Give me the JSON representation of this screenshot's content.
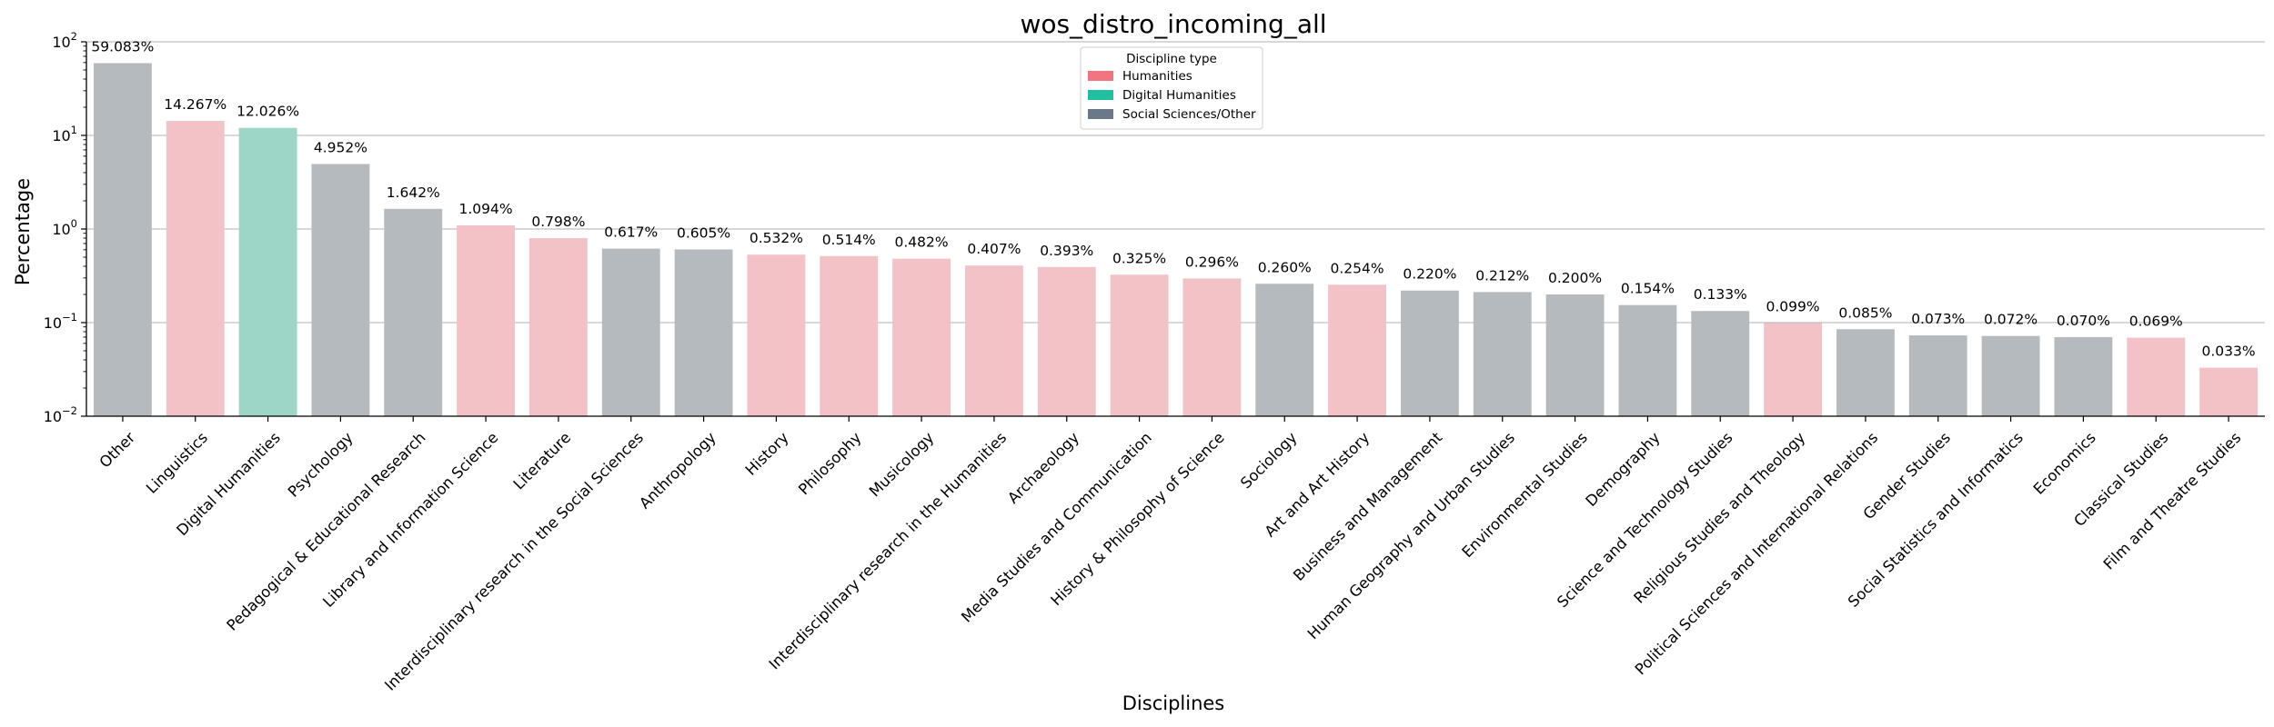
{
  "chart_data": {
    "type": "bar",
    "title": "wos_distro_incoming_all",
    "xlabel": "Disciplines",
    "ylabel": "Percentage",
    "y_scale": "log",
    "ylim": [
      0.01,
      100
    ],
    "y_ticks": [
      0.01,
      0.1,
      1,
      10,
      100
    ],
    "y_tick_labels": [
      {
        "base": "10",
        "exp": "−2"
      },
      {
        "base": "10",
        "exp": "−1"
      },
      {
        "base": "10",
        "exp": "0"
      },
      {
        "base": "10",
        "exp": "1"
      },
      {
        "base": "10",
        "exp": "2"
      }
    ],
    "grid": "horizontal",
    "legend": {
      "title": "Discipline type",
      "placement": "upper-center",
      "entries": [
        {
          "label": "Humanities",
          "color": "#F07580"
        },
        {
          "label": "Digital Humanities",
          "color": "#1FBF9F"
        },
        {
          "label": "Social Sciences/Other",
          "color": "#6B7888"
        }
      ]
    },
    "bar_colors": {
      "Humanities": "#F2C2C7",
      "Digital Humanities": "#9DD5C6",
      "Social Sciences/Other": "#B5BABE"
    },
    "categories": [
      "Other",
      "Linguistics",
      "Digital Humanities",
      "Psychology",
      "Pedagogical & Educational Research",
      "Library and Information Science",
      "Literature",
      "Interdisciplinary research in the Social Sciences",
      "Anthropology",
      "History",
      "Philosophy",
      "Musicology",
      "Interdisciplinary research in the Humanities",
      "Archaeology",
      "Media Studies and Communication",
      "History & Philosophy of Science",
      "Sociology",
      "Art and Art History",
      "Business and Management",
      "Human Geography and Urban Studies",
      "Environmental Studies",
      "Demography",
      "Science and Technology Studies",
      "Religious Studies and Theology",
      "Political Sciences and International Relations",
      "Gender Studies",
      "Social Statistics and Informatics",
      "Economics",
      "Classical Studies",
      "Film and Theatre Studies"
    ],
    "values": [
      59.083,
      14.267,
      12.026,
      4.952,
      1.642,
      1.094,
      0.798,
      0.617,
      0.605,
      0.532,
      0.514,
      0.482,
      0.407,
      0.393,
      0.325,
      0.296,
      0.26,
      0.254,
      0.22,
      0.212,
      0.2,
      0.154,
      0.133,
      0.099,
      0.085,
      0.073,
      0.072,
      0.07,
      0.069,
      0.033
    ],
    "data_labels": [
      "59.083%",
      "14.267%",
      "12.026%",
      "4.952%",
      "1.642%",
      "1.094%",
      "0.798%",
      "0.617%",
      "0.605%",
      "0.532%",
      "0.514%",
      "0.482%",
      "0.407%",
      "0.393%",
      "0.325%",
      "0.296%",
      "0.260%",
      "0.254%",
      "0.220%",
      "0.212%",
      "0.200%",
      "0.154%",
      "0.133%",
      "0.099%",
      "0.085%",
      "0.073%",
      "0.072%",
      "0.070%",
      "0.069%",
      "0.033%"
    ],
    "types": [
      "Social Sciences/Other",
      "Humanities",
      "Digital Humanities",
      "Social Sciences/Other",
      "Social Sciences/Other",
      "Humanities",
      "Humanities",
      "Social Sciences/Other",
      "Social Sciences/Other",
      "Humanities",
      "Humanities",
      "Humanities",
      "Humanities",
      "Humanities",
      "Humanities",
      "Humanities",
      "Social Sciences/Other",
      "Humanities",
      "Social Sciences/Other",
      "Social Sciences/Other",
      "Social Sciences/Other",
      "Social Sciences/Other",
      "Social Sciences/Other",
      "Humanities",
      "Social Sciences/Other",
      "Social Sciences/Other",
      "Social Sciences/Other",
      "Social Sciences/Other",
      "Humanities",
      "Humanities"
    ]
  }
}
